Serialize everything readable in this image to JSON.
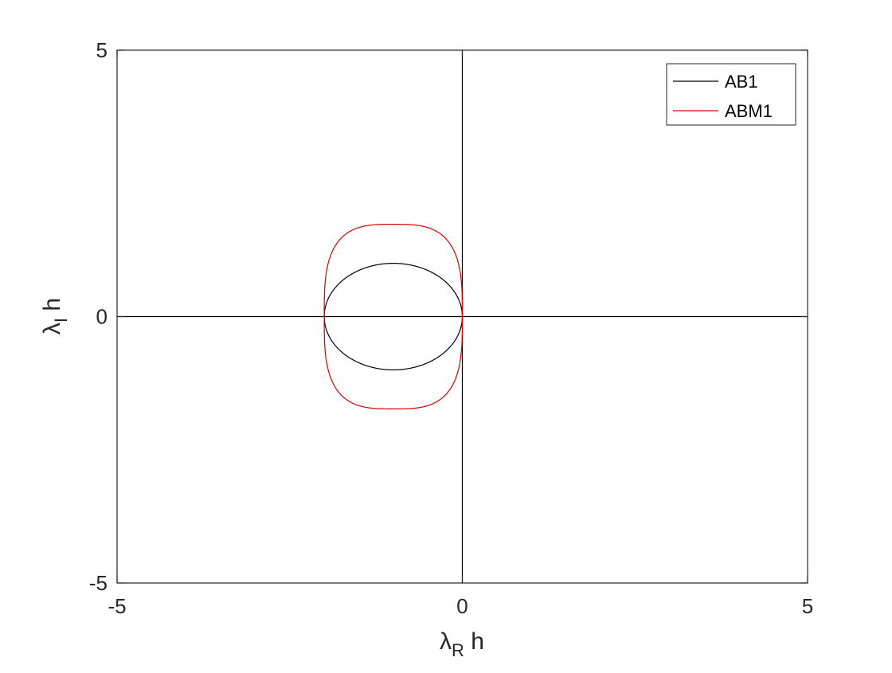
{
  "chart_data": {
    "type": "line",
    "title": "",
    "xlabel": {
      "symbol": "λ",
      "subscript": "R",
      "suffix": " h"
    },
    "ylabel": {
      "symbol": "λ",
      "subscript": "I",
      "suffix": " h"
    },
    "xlim": [
      -5,
      5
    ],
    "ylim": [
      -5,
      5
    ],
    "xticks": [
      {
        "value": -5,
        "label": "-5"
      },
      {
        "value": 0,
        "label": "0"
      },
      {
        "value": 5,
        "label": "5"
      }
    ],
    "yticks": [
      {
        "value": -5,
        "label": "-5"
      },
      {
        "value": 0,
        "label": "0"
      },
      {
        "value": 5,
        "label": "5"
      }
    ],
    "grid": false,
    "reference_lines": {
      "x": 0,
      "y": 0,
      "color": "#000000"
    },
    "legend": {
      "position": "top-right"
    },
    "series": [
      {
        "name": "AB1",
        "color": "#000000",
        "shape": "ellipse",
        "center": [
          -1,
          0
        ],
        "x_range": [
          -2,
          0
        ],
        "y_range": [
          -1,
          1
        ]
      },
      {
        "name": "ABM1",
        "color": "#d40000",
        "shape": "rounded-oval",
        "center": [
          -1,
          0
        ],
        "x_range": [
          -2,
          0
        ],
        "y_range": [
          -1.732,
          1.732
        ]
      }
    ]
  }
}
